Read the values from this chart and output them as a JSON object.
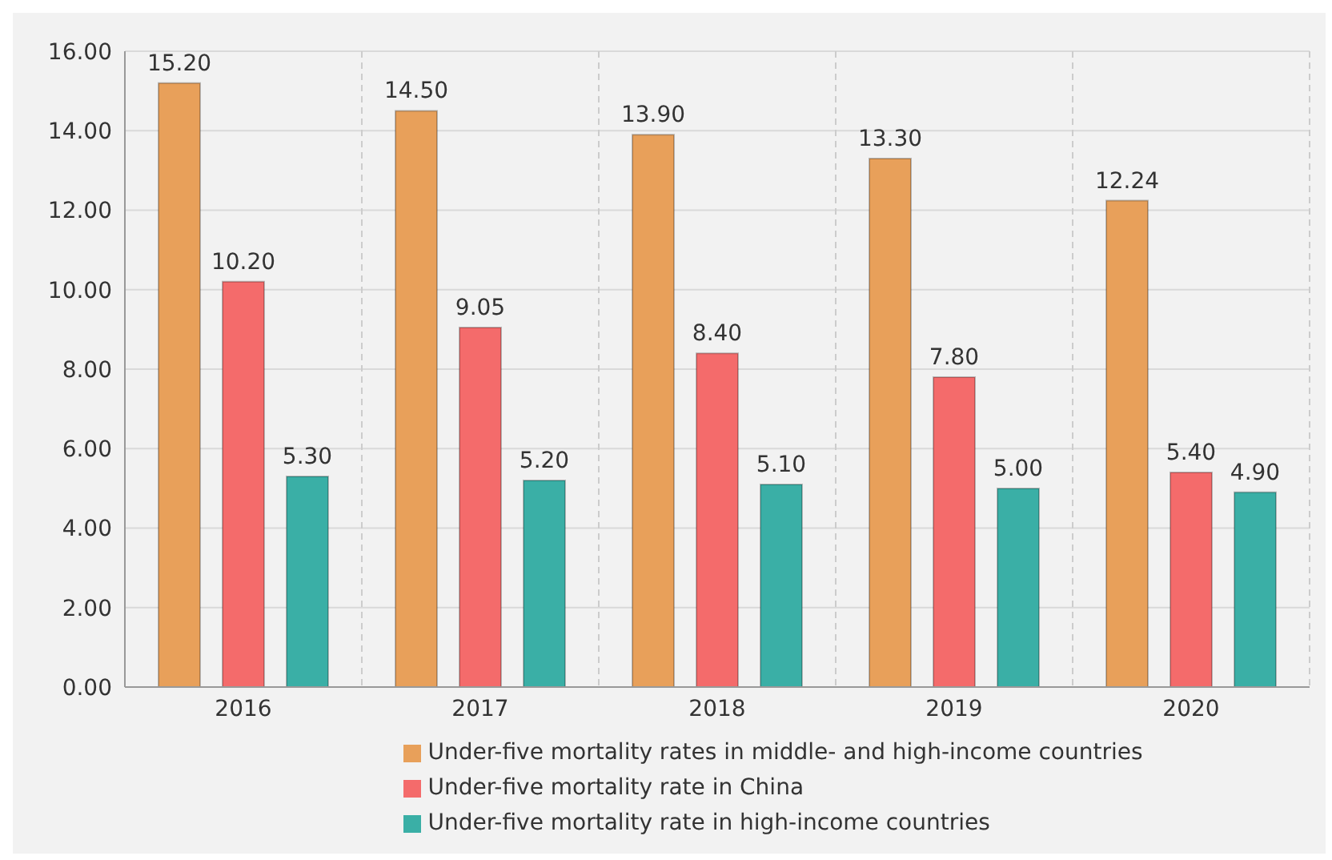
{
  "chart_data": {
    "type": "bar",
    "categories": [
      "2016",
      "2017",
      "2018",
      "2019",
      "2020"
    ],
    "series": [
      {
        "name": "Under-five mortality rates in middle- and high-income countries",
        "color": "#e8a05a",
        "values": [
          15.2,
          14.5,
          13.9,
          13.3,
          12.24
        ],
        "value_labels": [
          "15.20",
          "14.50",
          "13.90",
          "13.30",
          "12.24"
        ]
      },
      {
        "name": "Under-five mortality rate in China",
        "color": "#f46b6b",
        "values": [
          10.2,
          9.05,
          8.4,
          7.8,
          5.4
        ],
        "value_labels": [
          "10.20",
          "9.05",
          "8.40",
          "7.80",
          "5.40"
        ]
      },
      {
        "name": "Under-five mortality rate in high-income countries",
        "color": "#3aafa6",
        "values": [
          5.3,
          5.2,
          5.1,
          5.0,
          4.9
        ],
        "value_labels": [
          "5.30",
          "5.20",
          "5.10",
          "5.00",
          "4.90"
        ]
      }
    ],
    "ylim": [
      0,
      16
    ],
    "yticks": [
      {
        "value": 0,
        "label": "0.00"
      },
      {
        "value": 2,
        "label": "2.00"
      },
      {
        "value": 4,
        "label": "4.00"
      },
      {
        "value": 6,
        "label": "6.00"
      },
      {
        "value": 8,
        "label": "8.00"
      },
      {
        "value": 10,
        "label": "10.00"
      },
      {
        "value": 12,
        "label": "12.00"
      },
      {
        "value": 14,
        "label": "14.00"
      },
      {
        "value": 16,
        "label": "16.00"
      }
    ],
    "grid": true,
    "legend": "bottom"
  }
}
